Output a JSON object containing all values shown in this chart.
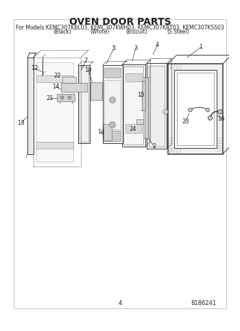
{
  "title": "OVEN DOOR PARTS",
  "subtitle_line1": "For Models:KEMC307KBL03, KEMC307KWH03, KEMC307KBT03, KEMC307KSS03",
  "subtitle_line2_parts": [
    "(Black)",
    "(White)",
    "(Biscuit)",
    "(S.Steel)"
  ],
  "page_number": "4",
  "part_number": "8186241",
  "bg_color": "#ffffff",
  "line_color": "#333333",
  "label_color": "#222222",
  "title_fontsize": 10,
  "subtitle_fontsize": 5.5,
  "label_fontsize": 6.0
}
